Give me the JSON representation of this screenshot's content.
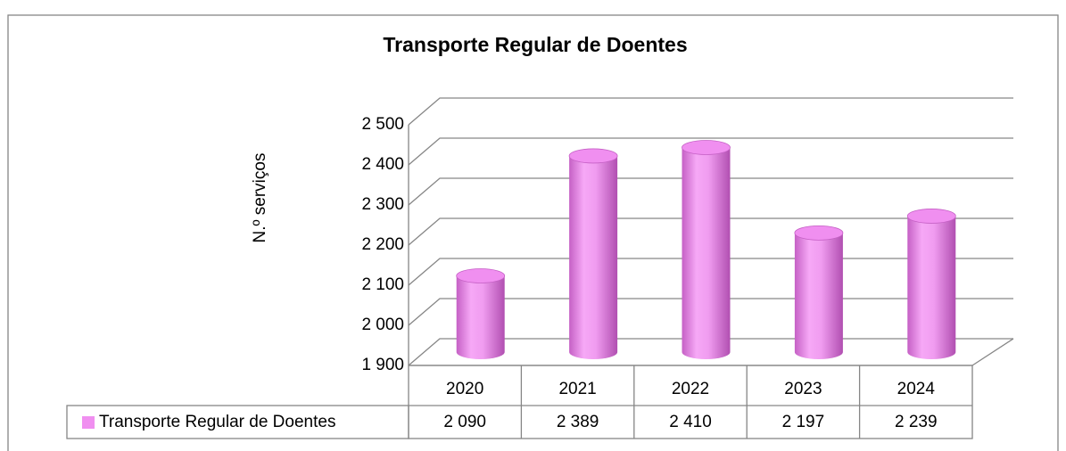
{
  "chart_data": {
    "type": "bar",
    "title": "Transporte Regular de Doentes",
    "y_label": "N.º serviços",
    "categories": [
      "2020",
      "2021",
      "2022",
      "2023",
      "2024"
    ],
    "series": [
      {
        "name": "Transporte Regular de Doentes",
        "color": "#f08ff0",
        "values": [
          2090,
          2389,
          2410,
          2197,
          2239
        ],
        "value_labels": [
          "2 090",
          "2 389",
          "2 410",
          "2 197",
          "2 239"
        ]
      }
    ],
    "ylim": [
      1900,
      2500
    ],
    "yticks": [
      {
        "value": 1900,
        "label": "1 900"
      },
      {
        "value": 2000,
        "label": "2 000"
      },
      {
        "value": 2100,
        "label": "2 100"
      },
      {
        "value": 2200,
        "label": "2 200"
      },
      {
        "value": 2300,
        "label": "2 300"
      },
      {
        "value": 2400,
        "label": "2 400"
      },
      {
        "value": 2500,
        "label": "2 500"
      }
    ],
    "grid": true
  }
}
